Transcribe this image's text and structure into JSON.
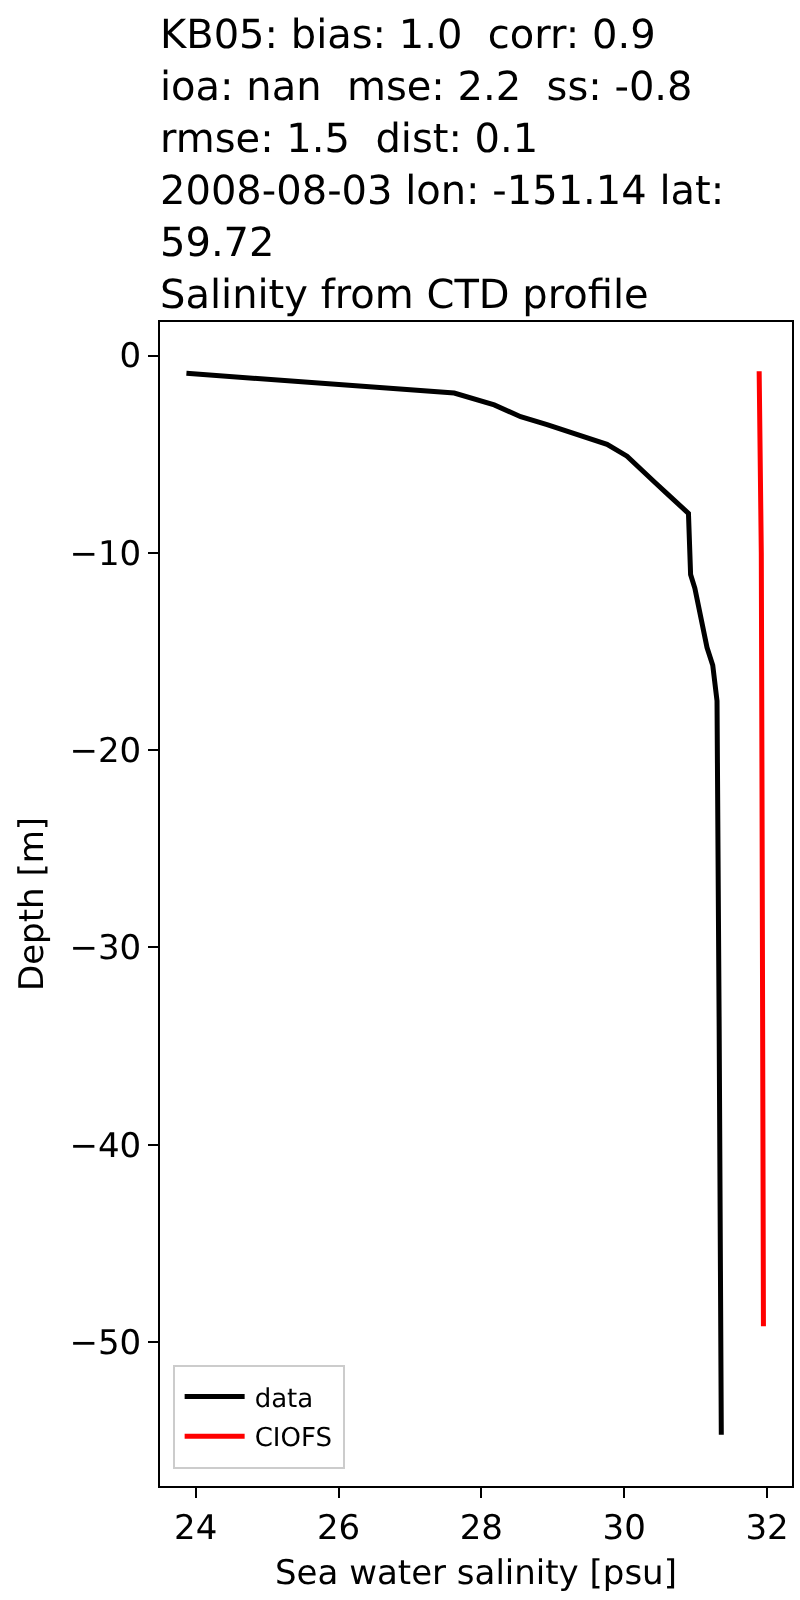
{
  "chart_data": {
    "type": "line",
    "title": "KB05: bias: 1.0  corr: 0.9\nioa: nan  mse: 2.2  ss: -0.8\nrmse: 1.5  dist: 0.1\n2008-08-03 lon: -151.14 lat:\n59.72\nSalinity from CTD profile",
    "xlabel": "Sea water salinity [psu]",
    "ylabel": "Depth [m]",
    "xlim": [
      23.5,
      32.35
    ],
    "ylim": [
      -57.3,
      1.7
    ],
    "xticks": [
      24,
      26,
      28,
      30,
      32
    ],
    "yticks": [
      {
        "value": -50,
        "label": "−50"
      },
      {
        "value": -40,
        "label": "−40"
      },
      {
        "value": -30,
        "label": "−30"
      },
      {
        "value": -20,
        "label": "−20"
      },
      {
        "value": -10,
        "label": "−10"
      },
      {
        "value": 0,
        "label": "0"
      }
    ],
    "legend": "bottom left",
    "line_style": "solid",
    "series": [
      {
        "name": "data",
        "color": "#000000",
        "x": [
          23.87,
          27.62,
          28.18,
          28.55,
          28.92,
          29.76,
          30.04,
          30.42,
          30.6,
          30.9,
          30.93,
          30.99,
          31.16,
          31.24,
          31.3,
          31.33,
          31.36
        ],
        "values": [
          -0.9,
          -1.9,
          -2.5,
          -3.1,
          -3.5,
          -4.5,
          -5.1,
          -6.4,
          -7.0,
          -8.0,
          -11.1,
          -11.8,
          -14.8,
          -15.7,
          -17.5,
          -34.0,
          -54.7
        ]
      },
      {
        "name": "CIOFS",
        "color": "#ff0000",
        "x": [
          31.89,
          31.92,
          31.93,
          31.95
        ],
        "values": [
          -0.8,
          -10.0,
          -22.0,
          -49.2
        ]
      }
    ]
  }
}
